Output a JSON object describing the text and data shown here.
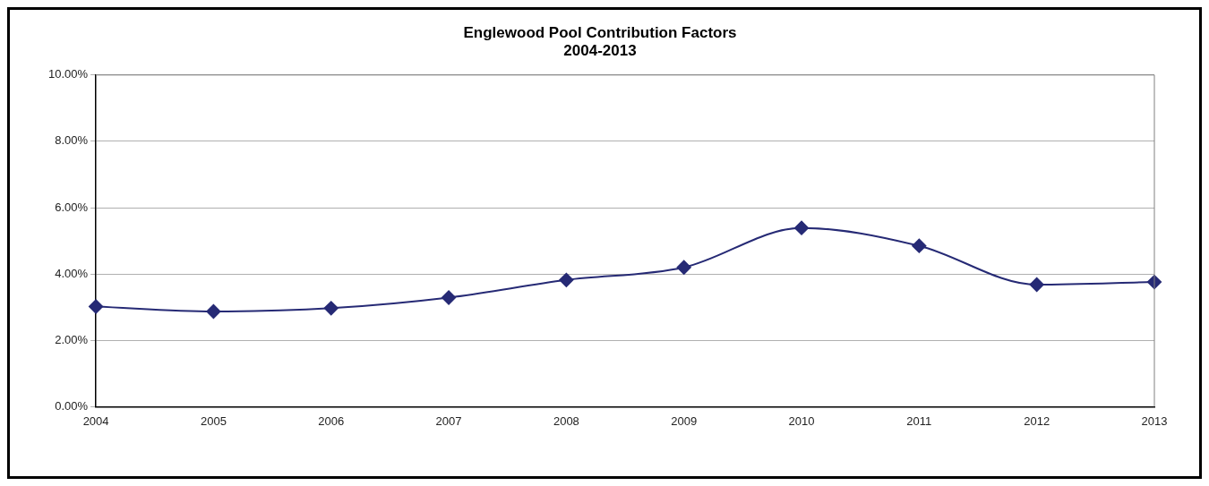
{
  "chart_data": {
    "type": "line",
    "title": "Englewood Pool Contribution Factors\n2004-2013",
    "categories": [
      "2004",
      "2005",
      "2006",
      "2007",
      "2008",
      "2009",
      "2010",
      "2011",
      "2012",
      "2013"
    ],
    "series": [
      {
        "color": "#262a75",
        "values": [
          3.02,
          2.87,
          2.97,
          3.29,
          3.82,
          4.2,
          5.39,
          4.85,
          3.68,
          3.76
        ]
      }
    ],
    "ylim": [
      0,
      10
    ],
    "yticks": [
      {
        "value": 0,
        "label": "0.00%"
      },
      {
        "value": 2,
        "label": "2.00%"
      },
      {
        "value": 4,
        "label": "4.00%"
      },
      {
        "value": 6,
        "label": "6.00%"
      },
      {
        "value": 8,
        "label": "8.00%"
      },
      {
        "value": 10,
        "label": "10.00%"
      }
    ],
    "grid": "y",
    "legend": false,
    "marker": "diamond",
    "line_style": "solid"
  }
}
